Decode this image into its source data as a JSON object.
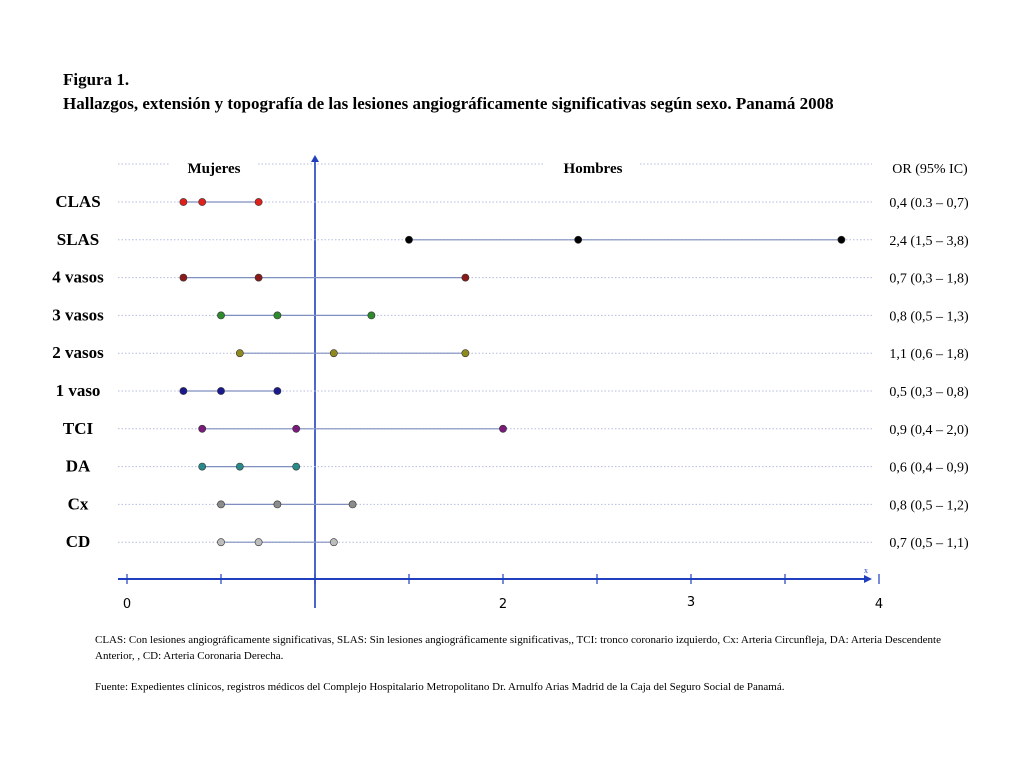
{
  "title": "Figura 1.",
  "subtitle": "Hallazgos, extensión y topografía de las lesiones angiográficamente significativas según sexo. Panamá 2008",
  "chart_data": {
    "type": "forest",
    "column_labels": {
      "left": "Mujeres",
      "center": "Hombres",
      "right": "OR (95% IC)"
    },
    "xlim": [
      0,
      4
    ],
    "x_ticks": [
      "0",
      "2",
      "3",
      "4"
    ],
    "x_tick_values": [
      0,
      2,
      3,
      4
    ],
    "axis_end_label": "x",
    "reference_line": 1,
    "rows": [
      {
        "label": "CLAS",
        "or": 0.4,
        "lo": 0.3,
        "hi": 0.7,
        "text": "0,4 (0.3 – 0,7)",
        "color": "#e0201b"
      },
      {
        "label": "SLAS",
        "or": 2.4,
        "lo": 1.5,
        "hi": 3.8,
        "text": "2,4 (1,5 – 3,8)",
        "color": "#000000"
      },
      {
        "label": "4 vasos",
        "or": 0.7,
        "lo": 0.3,
        "hi": 1.8,
        "text": "0,7 (0,3 – 1,8)",
        "color": "#8b1a1a"
      },
      {
        "label": "3 vasos",
        "or": 0.8,
        "lo": 0.5,
        "hi": 1.3,
        "text": "0,8 (0,5 – 1,3)",
        "color": "#2e8b2e"
      },
      {
        "label": "2 vasos",
        "or": 1.1,
        "lo": 0.6,
        "hi": 1.8,
        "text": "1,1 (0,6 – 1,8)",
        "color": "#8f8a1e"
      },
      {
        "label": "1 vaso",
        "or": 0.5,
        "lo": 0.3,
        "hi": 0.8,
        "text": "0,5 (0,3 – 0,8)",
        "color": "#1a1a8c"
      },
      {
        "label": "TCI",
        "or": 0.9,
        "lo": 0.4,
        "hi": 2.0,
        "text": "0,9 (0,4 – 2,0)",
        "color": "#7a1a7a"
      },
      {
        "label": "DA",
        "or": 0.6,
        "lo": 0.4,
        "hi": 0.9,
        "text": "0,6 (0,4 – 0,9)",
        "color": "#2a8a8a"
      },
      {
        "label": "Cx",
        "or": 0.8,
        "lo": 0.5,
        "hi": 1.2,
        "text": "0,8 (0,5 – 1,2)",
        "color": "#8c8c8c"
      },
      {
        "label": "CD",
        "or": 0.7,
        "lo": 0.5,
        "hi": 1.1,
        "text": "0,7 (0,5 – 1,1)",
        "color": "#bdbdbd"
      }
    ],
    "colors": {
      "axis": "#1f3fbf",
      "interval": "#7f8fbf",
      "dotted_guide": "#b4bce0"
    },
    "grid": false
  },
  "notes": {
    "abbreviations": "CLAS: Con lesiones angiográficamente significativas, SLAS: Sin lesiones angiográficamente significativas,, TCI: tronco coronario izquierdo, Cx: Arteria Circunfleja, DA: Arteria Descendente Anterior, , CD: Arteria Coronaria Derecha.",
    "source": "Fuente: Expedientes clínicos, registros médicos del Complejo Hospitalario Metropolitano Dr. Arnulfo Arias Madrid de la Caja del Seguro Social de Panamá."
  }
}
